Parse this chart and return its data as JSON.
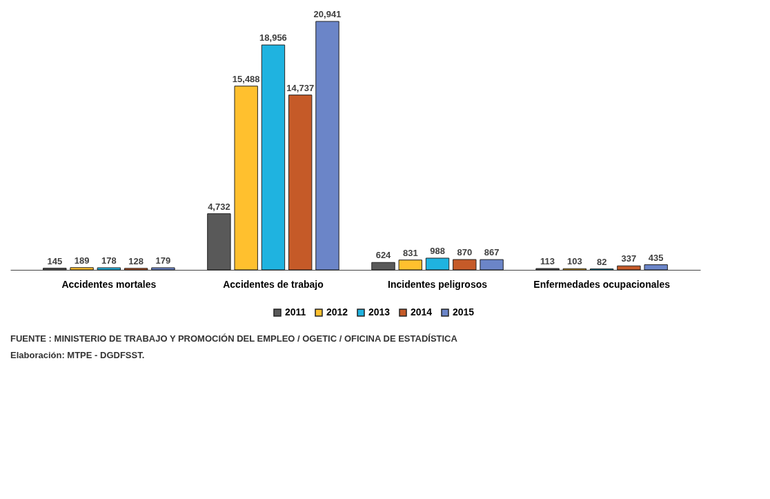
{
  "chart_data": {
    "type": "bar",
    "categories": [
      "Accidentes mortales",
      "Accidentes de trabajo",
      "Incidentes peligrosos",
      "Enfermedades ocupacionales"
    ],
    "series": [
      {
        "name": "2011",
        "color": "#595959",
        "values": [
          145,
          4732,
          624,
          113
        ],
        "value_labels": [
          "145",
          "4,732",
          "624",
          "113"
        ]
      },
      {
        "name": "2012",
        "color": "#ffc02e",
        "values": [
          189,
          15488,
          831,
          103
        ],
        "value_labels": [
          "189",
          "15,488",
          "831",
          "103"
        ]
      },
      {
        "name": "2013",
        "color": "#1fb3e0",
        "values": [
          178,
          18956,
          988,
          82
        ],
        "value_labels": [
          "178",
          "18,956",
          "988",
          "82"
        ]
      },
      {
        "name": "2014",
        "color": "#c55a28",
        "values": [
          128,
          14737,
          870,
          337
        ],
        "value_labels": [
          "128",
          "14,737",
          "870",
          "337"
        ]
      },
      {
        "name": "2015",
        "color": "#6b85c8",
        "values": [
          179,
          20941,
          867,
          435
        ],
        "value_labels": [
          "179",
          "20,941",
          "867",
          "435"
        ]
      }
    ],
    "legend": "bottom",
    "grid": false,
    "annotations": [
      "FUENTE :   MINISTERIO DE TRABAJO Y PROMOCIÓN DEL EMPLEO / OGETIC / OFICINA DE ESTADÍSTICA",
      "Elaboración: MTPE - DGDFSST."
    ]
  }
}
